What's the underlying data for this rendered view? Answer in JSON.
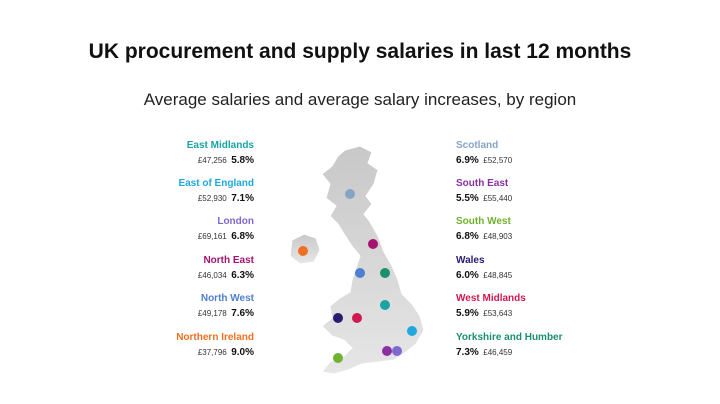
{
  "header": {
    "title": "UK procurement and supply salaries in last 12 months",
    "subtitle": "Average salaries and average salary increases, by region"
  },
  "left_regions": [
    {
      "name": "East Midlands",
      "salary": "£47,256",
      "increase": "5.8%",
      "color": "#1aa3a3"
    },
    {
      "name": "East of England",
      "salary": "£52,930",
      "increase": "7.1%",
      "color": "#1fa8db"
    },
    {
      "name": "London",
      "salary": "£69,161",
      "increase": "6.8%",
      "color": "#8068d0"
    },
    {
      "name": "North East",
      "salary": "£46,034",
      "increase": "6.3%",
      "color": "#a3146e"
    },
    {
      "name": "North West",
      "salary": "£49,178",
      "increase": "7.6%",
      "color": "#4f7fd0"
    },
    {
      "name": "Northern Ireland",
      "salary": "£37,796",
      "increase": "9.0%",
      "color": "#f07022"
    }
  ],
  "right_regions": [
    {
      "name": "Scotland",
      "salary": "£52,570",
      "increase": "6.9%",
      "color": "#86a4c4"
    },
    {
      "name": "South East",
      "salary": "£55,440",
      "increase": "5.5%",
      "color": "#8a30a0"
    },
    {
      "name": "South West",
      "salary": "£48,903",
      "increase": "6.8%",
      "color": "#6fb22e"
    },
    {
      "name": "Wales",
      "salary": "£48,845",
      "increase": "6.0%",
      "color": "#2a1a70"
    },
    {
      "name": "West Midlands",
      "salary": "£53,643",
      "increase": "5.9%",
      "color": "#d01a50"
    },
    {
      "name": "Yorkshire and Humber",
      "salary": "£46,459",
      "increase": "7.3%",
      "color": "#1a9070"
    }
  ]
}
